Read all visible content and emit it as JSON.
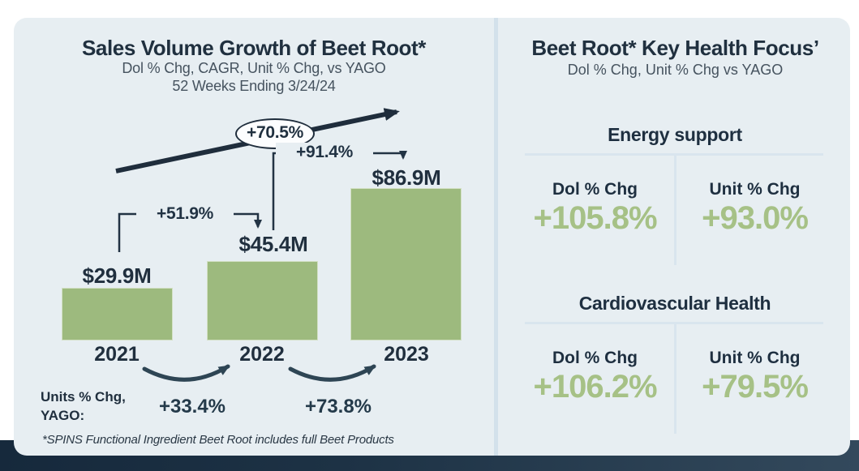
{
  "colors": {
    "card_background": "#e7eef2",
    "navy_text": "#20303f",
    "green_bar": "#9dba7e",
    "green_value": "#a6c186",
    "pale_rule": "#d9e5ee",
    "bottom_band": "#1d3245"
  },
  "left_panel": {
    "title": "Sales Volume Growth of Beet Root*",
    "subtitle_line1": "Dol % Chg, CAGR, Unit % Chg, vs YAGO",
    "subtitle_line2": "52 Weeks Ending 3/24/24",
    "units_yago_label_line1": "Units % Chg,",
    "units_yago_label_line2": "YAGO:",
    "footnote": "*SPINS Functional Ingredient Beet Root includes full Beet Products"
  },
  "chart_data": {
    "type": "bar",
    "title": "Sales Volume Growth of Beet Root*",
    "subtitle": "Dol % Chg, CAGR, Unit % Chg, vs YAGO",
    "period": "52 Weeks Ending 3/24/24",
    "categories": [
      "2021",
      "2022",
      "2023"
    ],
    "values": [
      29.9,
      45.4,
      86.9
    ],
    "value_labels": [
      "$29.9M",
      "$45.4M",
      "$86.9M"
    ],
    "unit": "sales, millions USD",
    "yoy_dollar_pct_change": [
      "+51.9%",
      "+91.4%"
    ],
    "cagr_label": "+70.5%",
    "units_pct_change_vs_yago": [
      "+33.4%",
      "+73.8%"
    ],
    "bar_color": "#9dba7e",
    "ylim": [
      0,
      90
    ],
    "grid": false,
    "legend": false
  },
  "right_panel": {
    "title": "Beet Root* Key Health Focus’",
    "subtitle": "Dol % Chg, Unit % Chg vs YAGO",
    "sections": [
      {
        "name": "Energy support",
        "dol_label": "Dol % Chg",
        "dol_value": "+105.8%",
        "unit_label": "Unit % Chg",
        "unit_value": "+93.0%"
      },
      {
        "name": "Cardiovascular Health",
        "dol_label": "Dol % Chg",
        "dol_value": "+106.2%",
        "unit_label": "Unit % Chg",
        "unit_value": "+79.5%"
      }
    ]
  }
}
